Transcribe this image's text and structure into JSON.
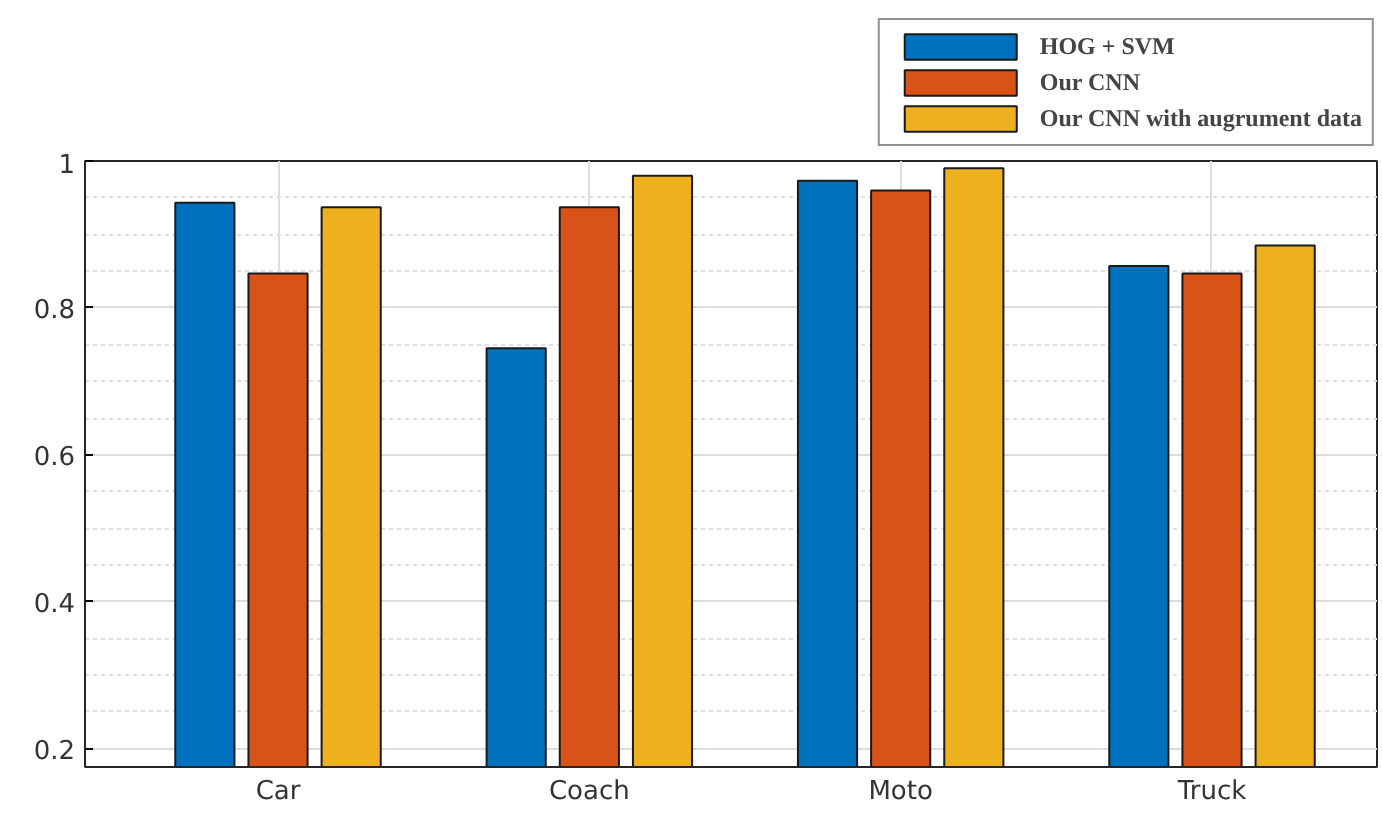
{
  "chart_data": {
    "type": "bar",
    "categories": [
      "Car",
      "Coach",
      "Moto",
      "Truck"
    ],
    "series": [
      {
        "name": "HOG + SVM",
        "color": "#0072bd",
        "values": [
          0.943,
          0.745,
          0.973,
          0.857
        ]
      },
      {
        "name": "Our CNN",
        "color": "#d95319",
        "values": [
          0.847,
          0.937,
          0.96,
          0.847
        ]
      },
      {
        "name": "Our CNN with augrument data",
        "color": "#edb120",
        "values": [
          0.937,
          0.98,
          0.99,
          0.885
        ]
      }
    ],
    "ylim": [
      0.175,
      1.0
    ],
    "yticks": [
      0.2,
      0.4,
      0.6,
      0.8,
      1
    ],
    "grid": true,
    "legend": "top right"
  }
}
